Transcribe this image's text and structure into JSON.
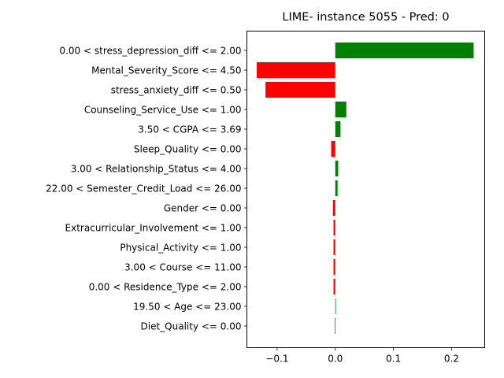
{
  "chart_data": {
    "type": "bar",
    "orientation": "horizontal",
    "title": "LIME- instance 5055 - Pred: 0",
    "xlabel": "",
    "ylabel": "",
    "xlim": [
      -0.152,
      0.257
    ],
    "xticks": [
      -0.1,
      0.0,
      0.1,
      0.2
    ],
    "xtick_labels": [
      "−0.1",
      "0.0",
      "0.1",
      "0.2"
    ],
    "grid": false,
    "colors": {
      "positive": "#008000",
      "negative": "#ff0000"
    },
    "categories": [
      "0.00 < stress_depression_diff <= 2.00",
      "Mental_Severity_Score <= 4.50",
      "stress_anxiety_diff <= 0.50",
      "Counseling_Service_Use <= 1.00",
      "3.50 < CGPA <= 3.69",
      "Sleep_Quality <= 0.00",
      "3.00 < Relationship_Status <= 4.00",
      "22.00 < Semester_Credit_Load <= 26.00",
      "Gender <= 0.00",
      "Extracurricular_Involvement <= 1.00",
      "Physical_Activity <= 1.00",
      "3.00 < Course <= 11.00",
      "0.00 < Residence_Type <= 2.00",
      "19.50 < Age <= 23.00",
      "Diet_Quality <= 0.00"
    ],
    "values": [
      0.238,
      -0.135,
      -0.12,
      0.019,
      0.009,
      -0.007,
      0.005,
      0.004,
      -0.004,
      -0.003,
      -0.003,
      -0.003,
      -0.003,
      0.001,
      -0.001
    ]
  }
}
